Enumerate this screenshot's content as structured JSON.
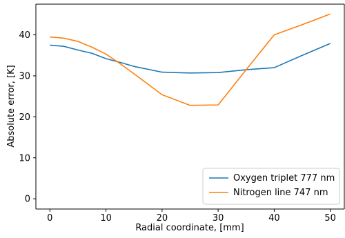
{
  "chart_data": {
    "type": "line",
    "xlabel": "Radial coordinate, [mm]",
    "ylabel": "Absolute error, [K]",
    "xlim": [
      -2.5,
      52.5
    ],
    "ylim": [
      -2.5,
      47.5
    ],
    "xticks": [
      "0",
      "10",
      "20",
      "30",
      "40",
      "50"
    ],
    "yticks": [
      "0",
      "10",
      "20",
      "30",
      "40"
    ],
    "grid": false,
    "legend_position": "lower-right",
    "series": [
      {
        "name": "Oxygen triplet 777 nm",
        "color": "#1f77b4",
        "x": [
          0,
          2.5,
          5,
          7.5,
          10,
          12.5,
          15,
          20,
          25,
          30,
          35,
          40,
          45,
          50
        ],
        "y": [
          37.5,
          37.2,
          36.3,
          35.5,
          34.2,
          33.3,
          32.3,
          30.9,
          30.7,
          30.8,
          31.5,
          32.0,
          35.0,
          37.9
        ]
      },
      {
        "name": "Nitrogen line 747 nm",
        "color": "#ff7f0e",
        "x": [
          0,
          2.5,
          5,
          7.5,
          10,
          12.5,
          15,
          20,
          25,
          30,
          35,
          40,
          45,
          50
        ],
        "y": [
          39.5,
          39.2,
          38.4,
          37.0,
          35.3,
          33.0,
          30.5,
          25.4,
          22.8,
          22.9,
          31.5,
          40.0,
          42.5,
          45.1
        ]
      }
    ]
  }
}
